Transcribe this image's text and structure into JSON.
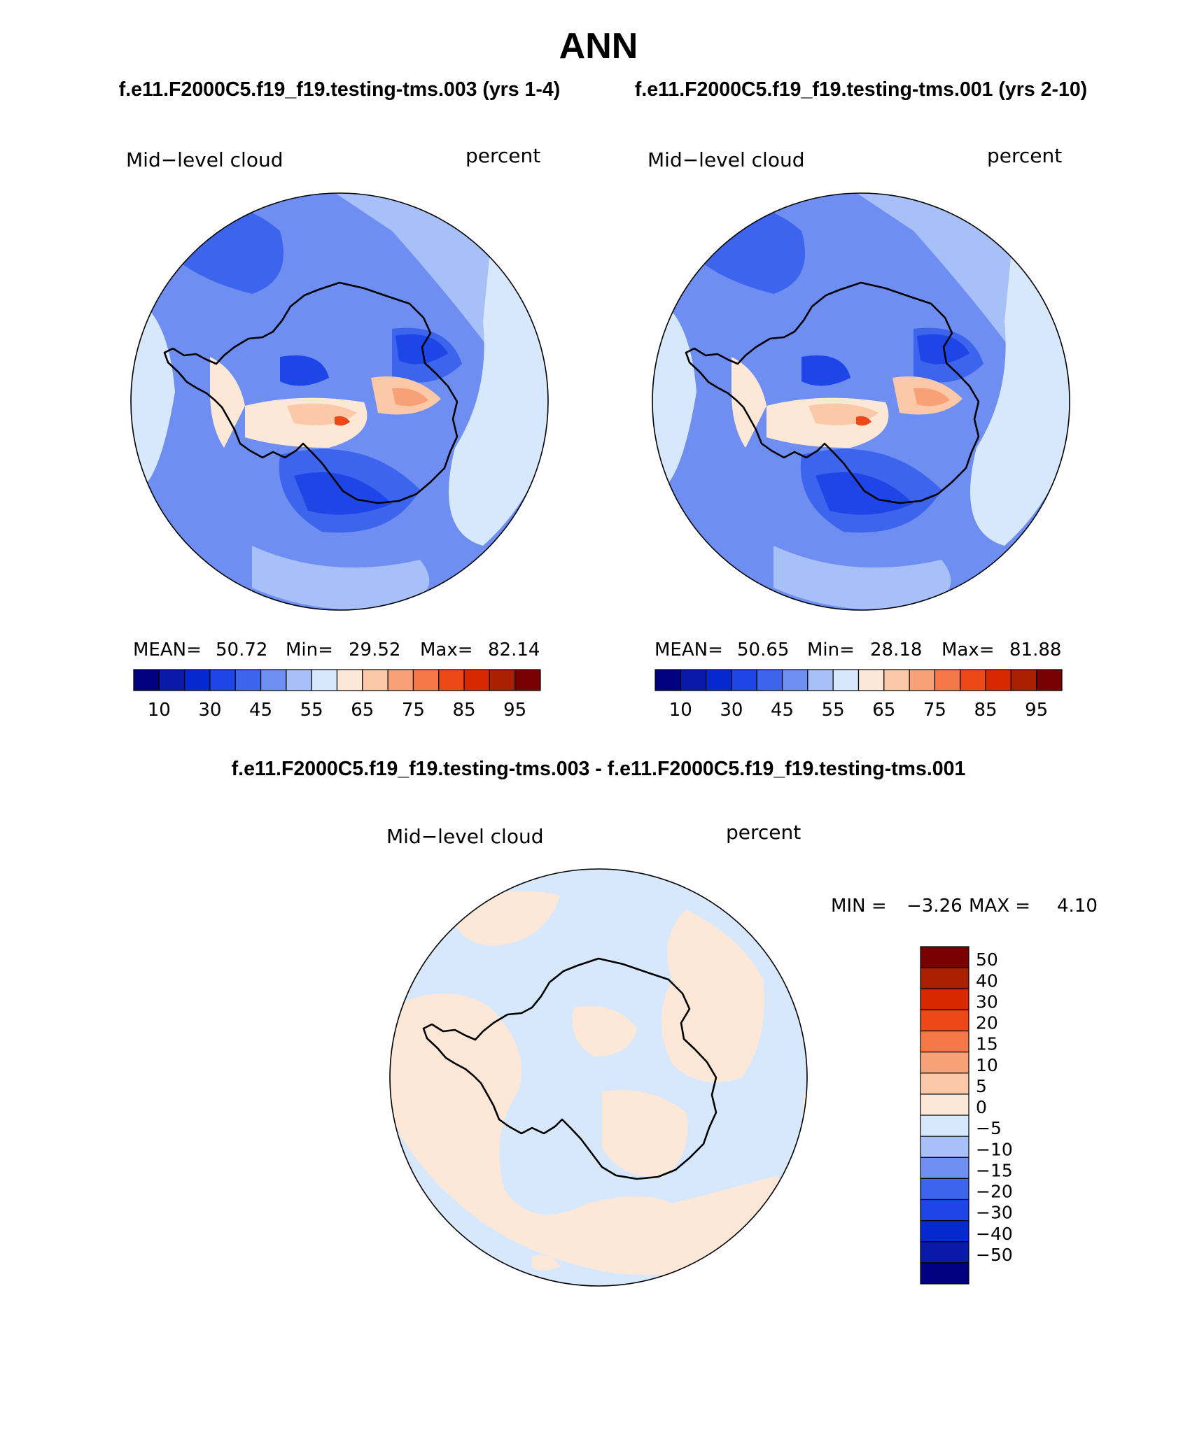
{
  "title": "ANN",
  "case_a_title": "f.e11.F2000C5.f19_f19.testing-tms.003 (yrs 1-4)",
  "case_b_title": "f.e11.F2000C5.f19_f19.testing-tms.001 (yrs 2-10)",
  "diff_title": "f.e11.F2000C5.f19_f19.testing-tms.003 - f.e11.F2000C5.f19_f19.testing-tms.001",
  "panels": {
    "a": {
      "variable": "Mid−level cloud",
      "units": "percent",
      "mean_label": "MEAN=",
      "mean_value": "50.72",
      "min_label": "Min=",
      "min_value": "29.52",
      "max_label": "Max=",
      "max_value": "82.14"
    },
    "b": {
      "variable": "Mid−level cloud",
      "units": "percent",
      "mean_label": "MEAN=",
      "mean_value": "50.65",
      "min_label": "Min=",
      "min_value": "28.18",
      "max_label": "Max=",
      "max_value": "81.88"
    },
    "diff": {
      "variable": "Mid−level cloud",
      "units": "percent",
      "min_label": "MIN =",
      "min_value": "−3.26",
      "max_label": "MAX =",
      "max_value": "4.10"
    }
  },
  "abs_colorbar": {
    "colors": [
      "#000080",
      "#0a1aa8",
      "#0528d0",
      "#1e46e6",
      "#3c64ec",
      "#6e8ef2",
      "#a8c0f8",
      "#d8e8fc",
      "#fde8d8",
      "#fbc8a8",
      "#f8a078",
      "#f47848",
      "#ec4818",
      "#d82800",
      "#a82000",
      "#780000"
    ],
    "labels": [
      "10",
      "30",
      "45",
      "55",
      "65",
      "75",
      "85",
      "95"
    ]
  },
  "diff_colorbar": {
    "colors": [
      "#000080",
      "#0a1aa8",
      "#0528d0",
      "#1e46e6",
      "#3c64ec",
      "#6e8ef2",
      "#a8c0f8",
      "#d8e8fc",
      "#fde8d8",
      "#fbc8a8",
      "#f8a078",
      "#f47848",
      "#ec4818",
      "#d82800",
      "#a82000",
      "#780000"
    ],
    "labels": [
      "−50",
      "−40",
      "−30",
      "−20",
      "−15",
      "−10",
      "−5",
      "0",
      "5",
      "10",
      "15",
      "20",
      "30",
      "40",
      "50"
    ]
  },
  "map_colors": {
    "ocean_light": "#a8c0f8",
    "ocean_mid": "#6e8ef2",
    "ocean_dark": "#3c64ec",
    "deep": "#1e46e6",
    "pale": "#d8e8fc",
    "warm1": "#fde8d8",
    "warm2": "#fbc8a8",
    "warm3": "#f8a078",
    "warm4": "#ec4818",
    "diff_neg": "#d8e8fc",
    "diff_pos": "#fde8d8"
  }
}
